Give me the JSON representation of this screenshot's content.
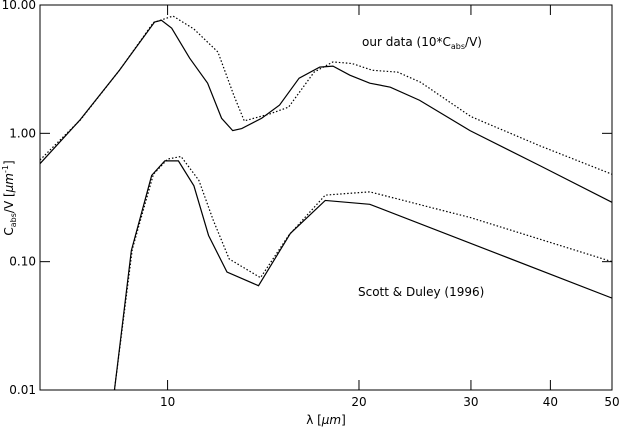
{
  "chart_data": {
    "type": "line",
    "xlabel": [
      "λ [",
      "μm",
      "]"
    ],
    "ylabel": [
      "C",
      "abs",
      "/V [",
      "μm",
      "-1",
      "]"
    ],
    "annotations": [
      [
        "our data (10*C",
        "abs",
        "/V)"
      ],
      [
        "Scott & Duley (1996)"
      ]
    ],
    "xlog": true,
    "ylog": true,
    "xlim": [
      6.3,
      50
    ],
    "ylim": [
      0.01,
      10
    ],
    "xticks": [
      10,
      20,
      30,
      40,
      50
    ],
    "yticks": [
      {
        "value": 10,
        "label": "10.00"
      },
      {
        "value": 1,
        "label": "1.00"
      },
      {
        "value": 0.1,
        "label": "0.10"
      },
      {
        "value": 0.01,
        "label": "0.01"
      }
    ],
    "series": [
      {
        "color": "#000000",
        "style": "solid",
        "x": [
          6.3,
          7.27,
          8.4,
          9.54,
          9.78,
          10.15,
          10.83,
          11.56,
          12.16,
          12.66,
          13.08,
          14.06,
          15.0,
          16.1,
          17.35,
          18.2,
          19.35,
          20.8,
          22.4,
          24.9,
          29.9,
          38.5,
          50
        ],
        "values": [
          0.58,
          1.26,
          3.1,
          7.36,
          7.6,
          6.6,
          3.86,
          2.46,
          1.31,
          1.05,
          1.09,
          1.31,
          1.66,
          2.69,
          3.28,
          3.34,
          2.84,
          2.46,
          2.29,
          1.81,
          1.05,
          0.56,
          0.29
        ]
      },
      {
        "color": "#000000",
        "style": "dotted",
        "x": [
          6.3,
          7.3,
          8.4,
          9.5,
          10.2,
          11,
          12,
          12.7,
          13.2,
          14.5,
          15.5,
          17,
          18.2,
          19.5,
          21,
          23,
          25,
          30,
          38.5,
          50
        ],
        "values": [
          0.62,
          1.28,
          3.1,
          7.3,
          8.2,
          6.5,
          4.3,
          2.0,
          1.25,
          1.42,
          1.6,
          3.0,
          3.6,
          3.5,
          3.1,
          3.0,
          2.5,
          1.35,
          0.8,
          0.48
        ]
      },
      {
        "color": "#000000",
        "style": "solid",
        "x": [
          8.25,
          8.77,
          9.44,
          9.9,
          10.4,
          11.0,
          11.6,
          12.4,
          13.9,
          15.6,
          17.7,
          20.8,
          50
        ],
        "values": [
          0.01,
          0.122,
          0.47,
          0.61,
          0.61,
          0.39,
          0.16,
          0.083,
          0.065,
          0.166,
          0.3,
          0.28,
          0.052
        ]
      },
      {
        "color": "#000000",
        "style": "dotted",
        "x": [
          8.25,
          8.8,
          9.5,
          10.0,
          10.5,
          11.2,
          11.8,
          12.5,
          14.0,
          15.5,
          17.7,
          20.8,
          30,
          50
        ],
        "values": [
          0.01,
          0.125,
          0.48,
          0.63,
          0.66,
          0.43,
          0.21,
          0.105,
          0.075,
          0.16,
          0.33,
          0.35,
          0.22,
          0.1
        ]
      }
    ]
  }
}
